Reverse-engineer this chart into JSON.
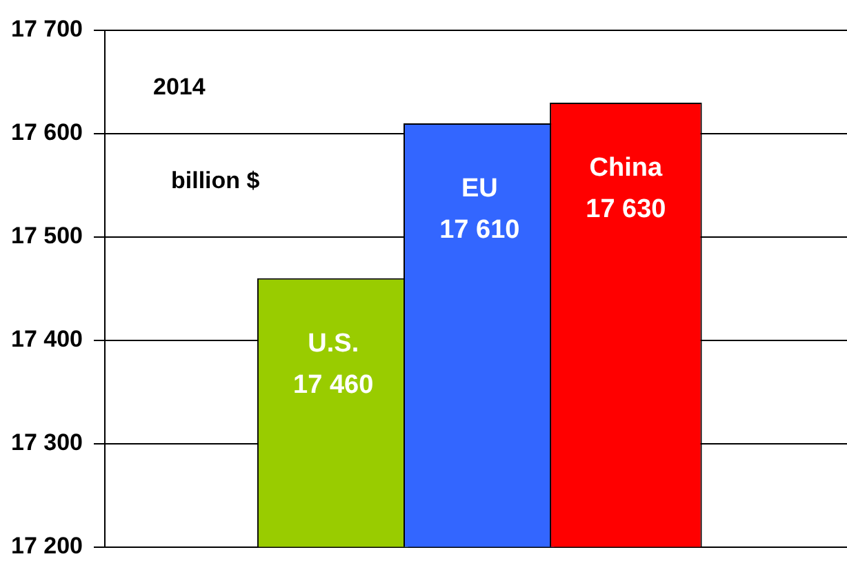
{
  "chart_data": {
    "type": "bar",
    "categories": [
      "U.S.",
      "EU",
      "China"
    ],
    "values": [
      17460,
      17610,
      17630
    ],
    "colors": [
      "#99cc00",
      "#3366ff",
      "#ff0000"
    ],
    "value_labels": [
      "17 460",
      "17 610",
      "17 630"
    ],
    "ylim": [
      17200,
      17700
    ],
    "yticks": [
      {
        "value": 17200,
        "label": "17 200"
      },
      {
        "value": 17300,
        "label": "17 300"
      },
      {
        "value": 17400,
        "label": "17 400"
      },
      {
        "value": 17500,
        "label": "17 500"
      },
      {
        "value": 17600,
        "label": "17 600"
      },
      {
        "value": 17700,
        "label": "17 700"
      }
    ],
    "grid": "y",
    "legend": false,
    "annotations": [
      "2014",
      "billion $"
    ]
  }
}
